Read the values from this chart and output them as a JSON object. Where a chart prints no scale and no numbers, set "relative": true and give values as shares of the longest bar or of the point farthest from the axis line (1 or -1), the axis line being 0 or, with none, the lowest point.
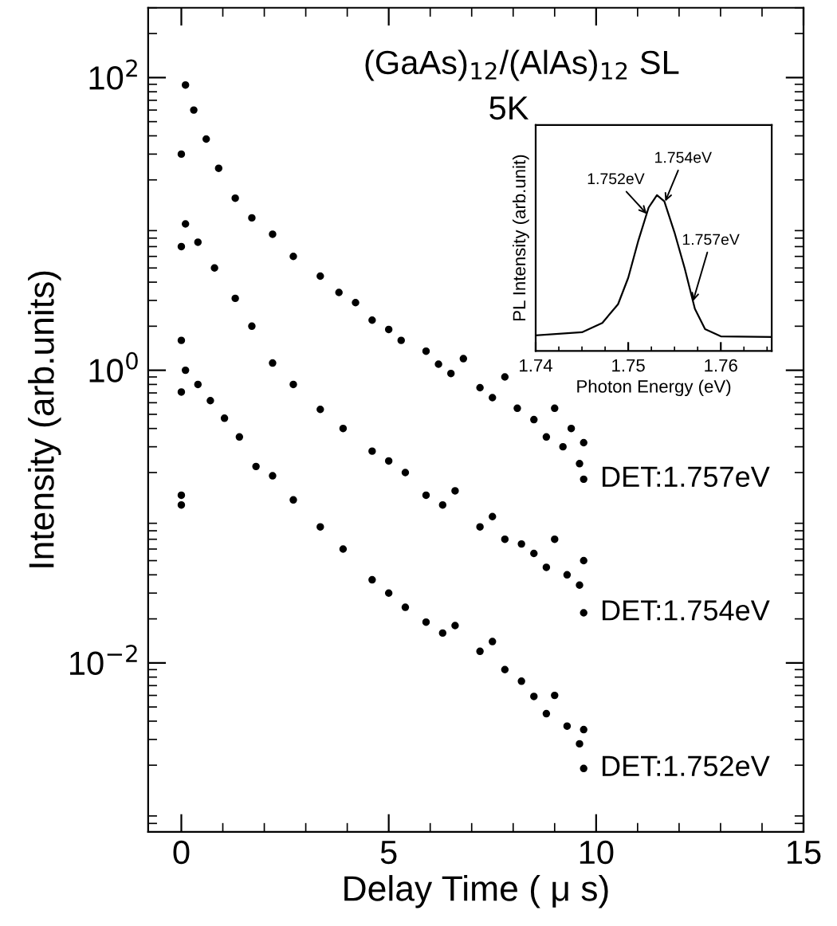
{
  "chart_data": [
    {
      "type": "scatter",
      "title": "(GaAs)$_{12}$/(AlAs)$_{12}$ SL",
      "subtitle": "5K",
      "xlabel": "Delay Time ( μ s)",
      "ylabel": "Intensity (arb.units)",
      "log": "y",
      "marker": "circle",
      "grid": false,
      "legend": "right",
      "xlim": [
        -0.8,
        15
      ],
      "xticks": [
        0,
        5,
        10,
        15
      ],
      "ylim": [
        0.0007,
        300
      ],
      "yticks": [
        {
          "value": 0.01,
          "label": "10$^{−2}$"
        },
        {
          "value": 1,
          "label": "10$^{0}$"
        },
        {
          "value": 100,
          "label": "10$^{2}$"
        }
      ],
      "series": [
        {
          "name": "DET:1.757eV",
          "color": "#000000",
          "x": [
            0,
            0.1,
            0.3,
            0.6,
            0.9,
            1.3,
            1.7,
            2.2,
            2.7,
            3.35,
            3.8,
            4.2,
            4.6,
            5.0,
            5.3,
            5.9,
            6.2,
            6.5,
            6.8,
            7.2,
            7.5,
            7.8,
            8.1,
            8.5,
            8.8,
            9.0,
            9.2,
            9.4,
            9.6,
            9.7,
            9.7
          ],
          "values": [
            30,
            89,
            60,
            38,
            24,
            15,
            11,
            8.5,
            6.0,
            4.4,
            3.4,
            2.9,
            2.2,
            1.9,
            1.6,
            1.35,
            1.1,
            0.95,
            1.2,
            0.76,
            0.65,
            0.9,
            0.55,
            0.46,
            0.35,
            0.55,
            0.3,
            0.4,
            0.23,
            0.32,
            0.18
          ]
        },
        {
          "name": "DET:1.754eV",
          "color": "#000000",
          "x": [
            0,
            0,
            0.1,
            0.4,
            0.8,
            1.3,
            1.7,
            2.2,
            2.7,
            3.35,
            3.9,
            4.6,
            5.0,
            5.4,
            5.9,
            6.3,
            6.6,
            7.2,
            7.5,
            7.8,
            8.2,
            8.5,
            8.8,
            9.0,
            9.3,
            9.6,
            9.7,
            9.7
          ],
          "values": [
            7,
            1.6,
            10,
            7.5,
            5.0,
            3.1,
            2.0,
            1.12,
            0.8,
            0.54,
            0.4,
            0.28,
            0.24,
            0.2,
            0.14,
            0.12,
            0.15,
            0.085,
            0.1,
            0.07,
            0.065,
            0.056,
            0.045,
            0.07,
            0.04,
            0.034,
            0.05,
            0.022
          ]
        },
        {
          "name": "DET:1.752eV",
          "color": "#000000",
          "x": [
            0,
            0,
            0,
            0.1,
            0.4,
            0.7,
            1.04,
            1.4,
            1.8,
            2.2,
            2.7,
            3.35,
            3.9,
            4.6,
            5.0,
            5.4,
            5.9,
            6.3,
            6.6,
            7.2,
            7.5,
            7.8,
            8.2,
            8.5,
            8.8,
            9.0,
            9.3,
            9.6,
            9.7,
            9.7
          ],
          "values": [
            0.71,
            0.14,
            0.12,
            1.0,
            0.8,
            0.62,
            0.47,
            0.35,
            0.22,
            0.19,
            0.13,
            0.085,
            0.06,
            0.037,
            0.03,
            0.024,
            0.019,
            0.016,
            0.018,
            0.012,
            0.014,
            0.009,
            0.0075,
            0.0059,
            0.0045,
            0.006,
            0.0037,
            0.0028,
            0.0035,
            0.0019
          ]
        }
      ]
    },
    {
      "type": "line",
      "relative": true,
      "xlabel": "Photon Energy (eV)",
      "ylabel": "PL Intensity (arb.unit)",
      "tick_labels": "x",
      "grid": false,
      "xlim": [
        1.74,
        1.7655
      ],
      "xticks": [
        1.74,
        1.75,
        1.76
      ],
      "series": [
        {
          "color": "#000000",
          "x": [
            1.74,
            1.745,
            1.7472,
            1.7489,
            1.75,
            1.7511,
            1.7522,
            1.7531,
            1.7539,
            1.755,
            1.7561,
            1.7572,
            1.7583,
            1.76,
            1.7655
          ],
          "values": [
            0.1,
            0.12,
            0.18,
            0.3,
            0.47,
            0.71,
            0.92,
            1.0,
            0.96,
            0.76,
            0.53,
            0.27,
            0.14,
            0.094,
            0.09
          ]
        }
      ],
      "annotations": [
        {
          "text": "1.752eV",
          "x": 1.752,
          "y": 0.88
        },
        {
          "text": "1.754eV",
          "x": 1.754,
          "y": 0.96
        },
        {
          "text": "1.757eV",
          "x": 1.757,
          "y": 0.32
        }
      ]
    }
  ]
}
